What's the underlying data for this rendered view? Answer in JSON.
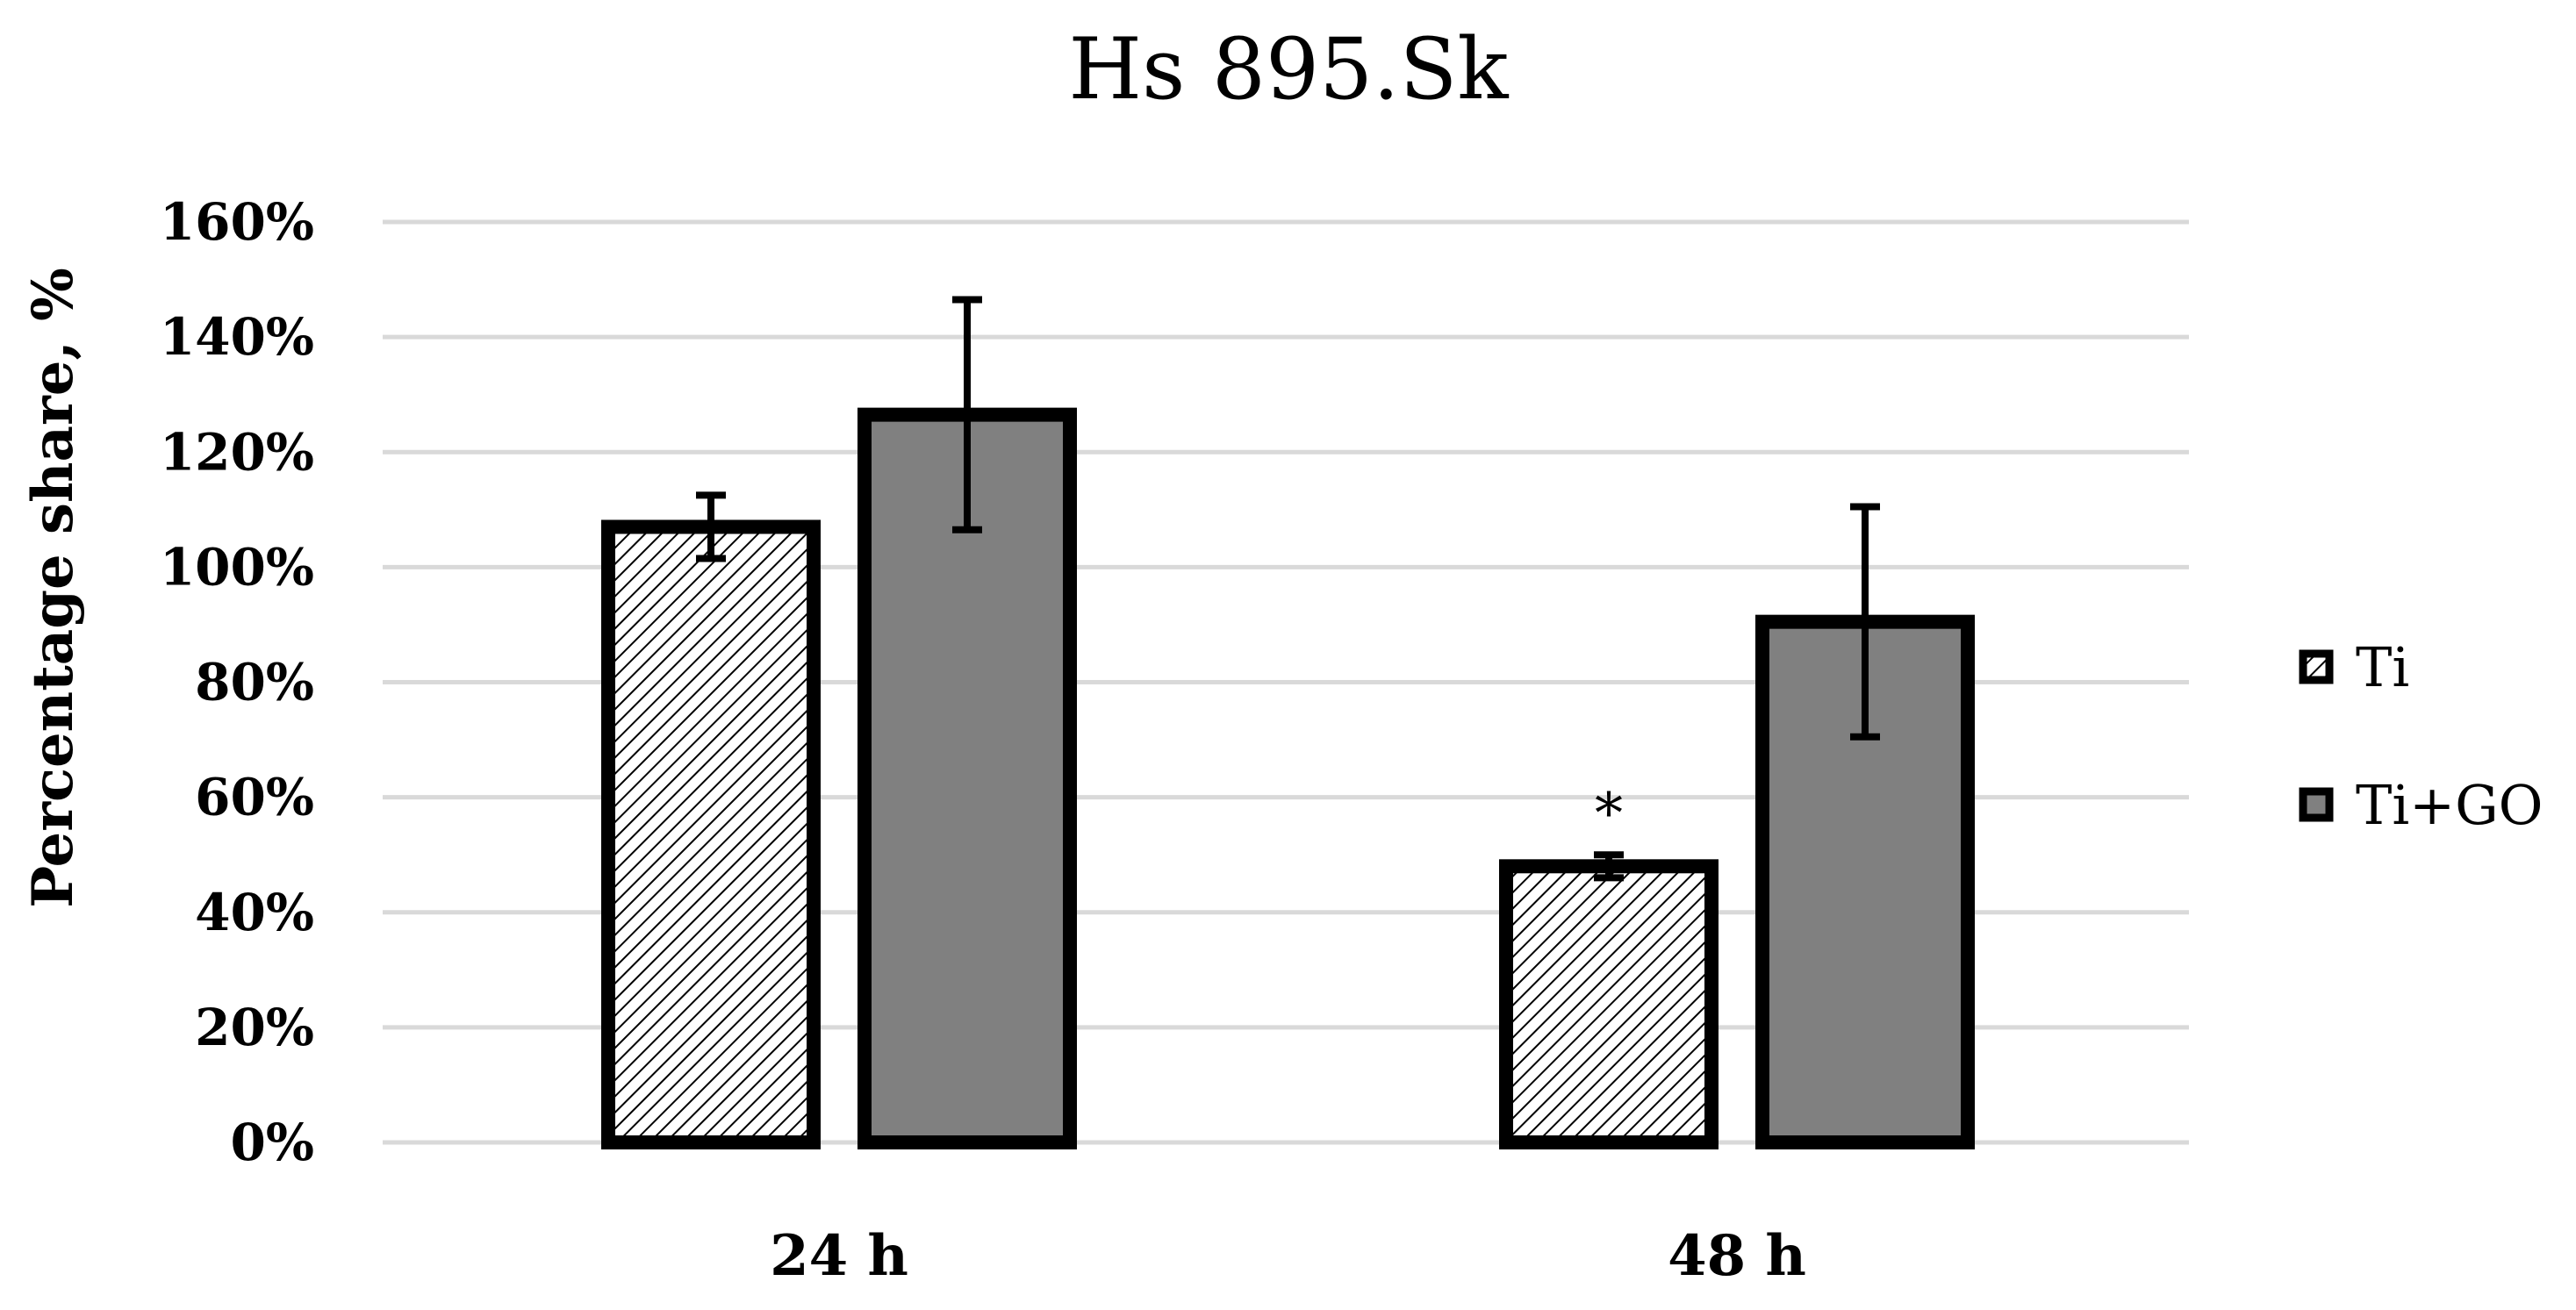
{
  "chart_data": {
    "type": "bar",
    "title": "Hs 895.Sk",
    "xlabel": "",
    "ylabel": "Percentage share, %",
    "ylim": [
      0,
      160
    ],
    "y_ticks": [
      0,
      20,
      40,
      60,
      80,
      100,
      120,
      140,
      160
    ],
    "y_tick_format": "percent",
    "grid": true,
    "legend_position": "right",
    "categories": [
      "24 h",
      "48 h"
    ],
    "series": [
      {
        "name": "Ti",
        "values": [
          107,
          48
        ],
        "errors": [
          5.5,
          2
        ],
        "fill": "hatched",
        "color": "#ffffff"
      },
      {
        "name": "Ti+GO",
        "values": [
          126.5,
          90.5
        ],
        "errors": [
          20,
          20
        ],
        "fill": "solid",
        "color": "#808080"
      }
    ],
    "annotations": [
      {
        "text": "*",
        "category": "48 h",
        "series": "Ti"
      }
    ]
  },
  "colors": {
    "grid": "#d9d9d9",
    "bar_outline": "#000000",
    "ti_go_fill": "#808080",
    "hatch": "#000000",
    "text": "#000000"
  }
}
